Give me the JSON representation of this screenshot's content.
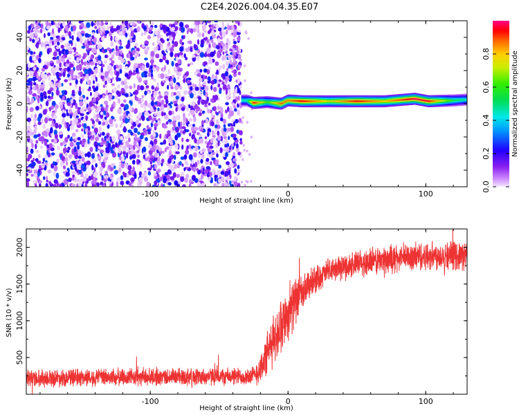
{
  "title": "C2E4.2026.004.04.35.E07",
  "chart_data": [
    {
      "type": "heatmap",
      "xlabel": "Height of straight line (km)",
      "ylabel": "Frequency (Hz)",
      "xlim": [
        -190,
        130
      ],
      "ylim": [
        -50,
        50
      ],
      "x_ticks": [
        -100,
        0,
        100
      ],
      "x_tick_labels": [
        "-100",
        "0",
        "100"
      ],
      "y_ticks": [
        -40,
        -20,
        0,
        20,
        40
      ],
      "y_tick_labels": [
        "-40",
        "-20",
        "0",
        "20",
        "40"
      ],
      "colorbar": {
        "label": "Normalized spectral amplitude",
        "range": [
          0,
          1
        ],
        "ticks": [
          0.0,
          0.2,
          0.4,
          0.6,
          0.8
        ],
        "tick_labels": [
          "0.0",
          "0.2",
          "0.4",
          "0.6",
          "0.8"
        ],
        "colormap": "rainbow (magenta-blue-cyan-green-yellow-red)"
      },
      "regions": [
        {
          "x_range": [
            -190,
            -34
          ],
          "description": "broadband scattered noise across all frequencies",
          "amplitude": [
            0.0,
            0.3
          ]
        },
        {
          "x_range": [
            -34,
            130
          ],
          "description": "narrow band near 0-3 Hz",
          "frequency_center": 1.5,
          "amplitude_peak": 1.0
        }
      ],
      "ridge": [
        {
          "x": -30,
          "f": 2.0,
          "a": 0.45
        },
        {
          "x": -25,
          "f": 0.5,
          "a": 0.95
        },
        {
          "x": -15,
          "f": 1.0,
          "a": 0.6
        },
        {
          "x": -5,
          "f": 0.0,
          "a": 0.9
        },
        {
          "x": 0,
          "f": 2.0,
          "a": 0.85
        },
        {
          "x": 10,
          "f": 1.5,
          "a": 0.95
        },
        {
          "x": 30,
          "f": 1.5,
          "a": 0.75
        },
        {
          "x": 50,
          "f": 1.5,
          "a": 0.95
        },
        {
          "x": 70,
          "f": 1.5,
          "a": 0.8
        },
        {
          "x": 92,
          "f": 3.0,
          "a": 0.98
        },
        {
          "x": 102,
          "f": 1.5,
          "a": 0.95
        },
        {
          "x": 120,
          "f": 2.0,
          "a": 0.55
        },
        {
          "x": 130,
          "f": 2.5,
          "a": 0.45
        }
      ]
    },
    {
      "type": "line",
      "xlabel": "Height of straight line (km)",
      "ylabel": "SNR (10 * v/v)",
      "xlim": [
        -190,
        130
      ],
      "ylim": [
        0,
        2250
      ],
      "x_ticks": [
        -100,
        0,
        100
      ],
      "x_tick_labels": [
        "-100",
        "0",
        "100"
      ],
      "y_ticks": [
        500,
        1000,
        1500,
        2000
      ],
      "y_tick_labels": [
        "500",
        "1000",
        "1500",
        "2000"
      ],
      "color": "#ee3333",
      "series": [
        {
          "x": [
            -190,
            -160,
            -130,
            -100,
            -70,
            -40,
            -25,
            -20,
            -15,
            -10,
            -5,
            0,
            5,
            10,
            15,
            20,
            25,
            30,
            40,
            50,
            60,
            70,
            80,
            90,
            100,
            110,
            120,
            130
          ],
          "y": [
            220,
            225,
            230,
            235,
            240,
            240,
            250,
            350,
            550,
            750,
            950,
            1100,
            1250,
            1350,
            1480,
            1560,
            1620,
            1680,
            1730,
            1770,
            1800,
            1830,
            1850,
            1870,
            1880,
            1890,
            1890,
            1890
          ],
          "noise_amplitude": [
            140,
            140,
            140,
            140,
            140,
            140,
            150,
            250,
            350,
            400,
            420,
            420,
            380,
            300,
            250,
            220,
            200,
            200,
            200,
            220,
            230,
            230,
            230,
            230,
            230,
            230,
            230,
            230
          ]
        }
      ]
    }
  ]
}
